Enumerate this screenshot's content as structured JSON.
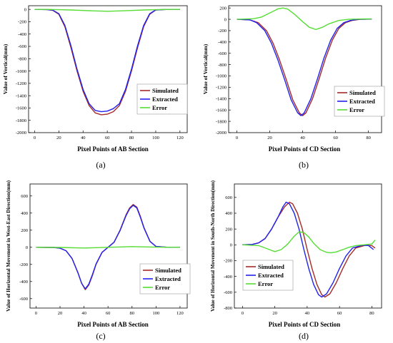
{
  "figure": {
    "captions": [
      "(a)",
      "(b)",
      "(c)",
      "(d)"
    ]
  },
  "colors": {
    "simulated": "#a52a2a",
    "extracted": "#2222ee",
    "error": "#55dd33",
    "legend_border": "#999999"
  },
  "chart_data": [
    {
      "type": "line",
      "xlabel": "Pixel Points of AB Section",
      "ylabel": "Value of Vertical(mm)",
      "xlim": [
        -5,
        126
      ],
      "ylim": [
        -2000,
        60
      ],
      "xticks": [
        0,
        20,
        40,
        60,
        80,
        100,
        120
      ],
      "yticks": [
        0,
        -200,
        -400,
        -600,
        -800,
        -1000,
        -1200,
        -1400,
        -1600,
        -1800,
        -2000
      ],
      "legend_position": "lower-right",
      "series": [
        {
          "name": "Simulated",
          "x": [
            0,
            10,
            15,
            20,
            25,
            30,
            35,
            40,
            45,
            50,
            55,
            60,
            65,
            70,
            75,
            80,
            85,
            90,
            95,
            100,
            110,
            120
          ],
          "y": [
            0,
            -2,
            -15,
            -80,
            -280,
            -620,
            -1000,
            -1330,
            -1560,
            -1680,
            -1710,
            -1700,
            -1660,
            -1560,
            -1330,
            -1000,
            -620,
            -280,
            -80,
            -10,
            0,
            0
          ]
        },
        {
          "name": "Extracted",
          "x": [
            0,
            10,
            15,
            20,
            25,
            30,
            35,
            40,
            45,
            50,
            55,
            60,
            65,
            70,
            75,
            80,
            85,
            90,
            95,
            100,
            110,
            120
          ],
          "y": [
            0,
            -2,
            -12,
            -70,
            -260,
            -590,
            -970,
            -1300,
            -1530,
            -1640,
            -1660,
            -1650,
            -1610,
            -1530,
            -1300,
            -970,
            -590,
            -260,
            -70,
            -8,
            0,
            0
          ]
        },
        {
          "name": "Error",
          "x": [
            0,
            10,
            20,
            30,
            40,
            50,
            60,
            70,
            80,
            90,
            100,
            110,
            120
          ],
          "y": [
            0,
            0,
            -5,
            -10,
            -18,
            -25,
            -30,
            -25,
            -18,
            -10,
            -5,
            0,
            0
          ]
        }
      ]
    },
    {
      "type": "line",
      "xlabel": "Pixel Points of CD Section",
      "ylabel": "Value of Vertical(mm)",
      "xlim": [
        -5,
        88
      ],
      "ylim": [
        -2000,
        240
      ],
      "xticks": [
        0,
        20,
        40,
        60,
        80
      ],
      "yticks": [
        200,
        0,
        -200,
        -400,
        -600,
        -800,
        -1000,
        -1200,
        -1400,
        -1600,
        -1800,
        -2000
      ],
      "legend_position": "lower-right",
      "series": [
        {
          "name": "Simulated",
          "x": [
            0,
            8,
            13,
            18,
            22,
            26,
            30,
            34,
            38,
            40,
            42,
            46,
            50,
            54,
            58,
            62,
            66,
            70,
            75,
            82
          ],
          "y": [
            0,
            -10,
            -60,
            -200,
            -420,
            -720,
            -1060,
            -1420,
            -1650,
            -1700,
            -1650,
            -1400,
            -1050,
            -680,
            -370,
            -160,
            -60,
            -20,
            0,
            5
          ]
        },
        {
          "name": "Extracted",
          "x": [
            0,
            8,
            12,
            17,
            21,
            25,
            29,
            33,
            37,
            39,
            41,
            45,
            49,
            53,
            57,
            61,
            65,
            69,
            74,
            82
          ],
          "y": [
            0,
            -10,
            -60,
            -200,
            -420,
            -720,
            -1060,
            -1420,
            -1650,
            -1700,
            -1650,
            -1400,
            -1050,
            -680,
            -370,
            -160,
            -60,
            -20,
            0,
            5
          ]
        },
        {
          "name": "Error",
          "x": [
            0,
            10,
            15,
            20,
            25,
            28,
            31,
            35,
            40,
            44,
            48,
            52,
            56,
            62,
            68,
            75,
            82
          ],
          "y": [
            0,
            10,
            40,
            110,
            185,
            200,
            180,
            90,
            -40,
            -140,
            -180,
            -140,
            -80,
            -20,
            0,
            5,
            8
          ]
        }
      ]
    },
    {
      "type": "line",
      "xlabel": "Pixel Points of AB Section",
      "ylabel": "Value of Horizontal Movement in West-East Direction(mm)",
      "xlim": [
        -5,
        126
      ],
      "ylim": [
        -710,
        740
      ],
      "xticks": [
        0,
        20,
        40,
        60,
        80,
        100,
        120
      ],
      "yticks": [
        600,
        400,
        200,
        0,
        -200,
        -400,
        -600
      ],
      "legend_position": "lower-right",
      "series": [
        {
          "name": "Simulated",
          "x": [
            0,
            15,
            20,
            25,
            30,
            35,
            38,
            41,
            44,
            47,
            50,
            55,
            60,
            65,
            70,
            75,
            78,
            81,
            84,
            87,
            90,
            95,
            100,
            110,
            120
          ],
          "y": [
            0,
            -2,
            -10,
            -40,
            -130,
            -300,
            -420,
            -495,
            -440,
            -330,
            -200,
            -60,
            0,
            60,
            200,
            380,
            460,
            500,
            470,
            360,
            230,
            70,
            10,
            0,
            0
          ]
        },
        {
          "name": "Extracted",
          "x": [
            0,
            15,
            20,
            25,
            30,
            35,
            38,
            41,
            44,
            47,
            50,
            55,
            60,
            65,
            70,
            75,
            78,
            81,
            84,
            87,
            90,
            95,
            100,
            110,
            120
          ],
          "y": [
            0,
            -2,
            -10,
            -40,
            -130,
            -300,
            -420,
            -485,
            -430,
            -320,
            -195,
            -58,
            0,
            58,
            195,
            370,
            450,
            490,
            460,
            350,
            225,
            68,
            10,
            0,
            0
          ]
        },
        {
          "name": "Error",
          "x": [
            0,
            20,
            40,
            60,
            80,
            100,
            120
          ],
          "y": [
            0,
            -2,
            -8,
            0,
            8,
            2,
            0
          ]
        }
      ]
    },
    {
      "type": "line",
      "xlabel": "Pixel Points of CD Section",
      "ylabel": "Value of Horizontal Movement in South-North Direction(mm)",
      "xlim": [
        -5,
        86
      ],
      "ylim": [
        -800,
        770
      ],
      "xticks": [
        0,
        20,
        40,
        60,
        80
      ],
      "yticks": [
        600,
        400,
        200,
        0,
        -200,
        -400,
        -600,
        -800
      ],
      "legend_position": "lower-left",
      "series": [
        {
          "name": "Simulated",
          "x": [
            0,
            6,
            10,
            14,
            18,
            22,
            26,
            29,
            31,
            34,
            37,
            40,
            43,
            46,
            49,
            51,
            54,
            58,
            62,
            66,
            70,
            76,
            80,
            82
          ],
          "y": [
            0,
            5,
            25,
            80,
            200,
            350,
            480,
            540,
            520,
            400,
            200,
            -60,
            -300,
            -500,
            -630,
            -660,
            -620,
            -480,
            -300,
            -140,
            -40,
            -5,
            -10,
            -40
          ]
        },
        {
          "name": "Extracted",
          "x": [
            0,
            6,
            10,
            14,
            18,
            22,
            25,
            27,
            29,
            32,
            35,
            38,
            41,
            44,
            47,
            49,
            52,
            56,
            60,
            64,
            68,
            74,
            78,
            81
          ],
          "y": [
            0,
            5,
            25,
            80,
            200,
            350,
            480,
            540,
            520,
            400,
            200,
            -60,
            -300,
            -500,
            -630,
            -660,
            -620,
            -480,
            -300,
            -140,
            -40,
            -5,
            -10,
            -60
          ]
        },
        {
          "name": "Error",
          "x": [
            0,
            10,
            16,
            20,
            24,
            28,
            32,
            35,
            38,
            41,
            44,
            48,
            52,
            55,
            58,
            62,
            66,
            70,
            75,
            80,
            82
          ],
          "y": [
            0,
            -10,
            -55,
            -85,
            -60,
            10,
            110,
            165,
            155,
            100,
            20,
            -60,
            -95,
            -100,
            -90,
            -60,
            -30,
            -10,
            0,
            10,
            60
          ]
        }
      ]
    }
  ]
}
